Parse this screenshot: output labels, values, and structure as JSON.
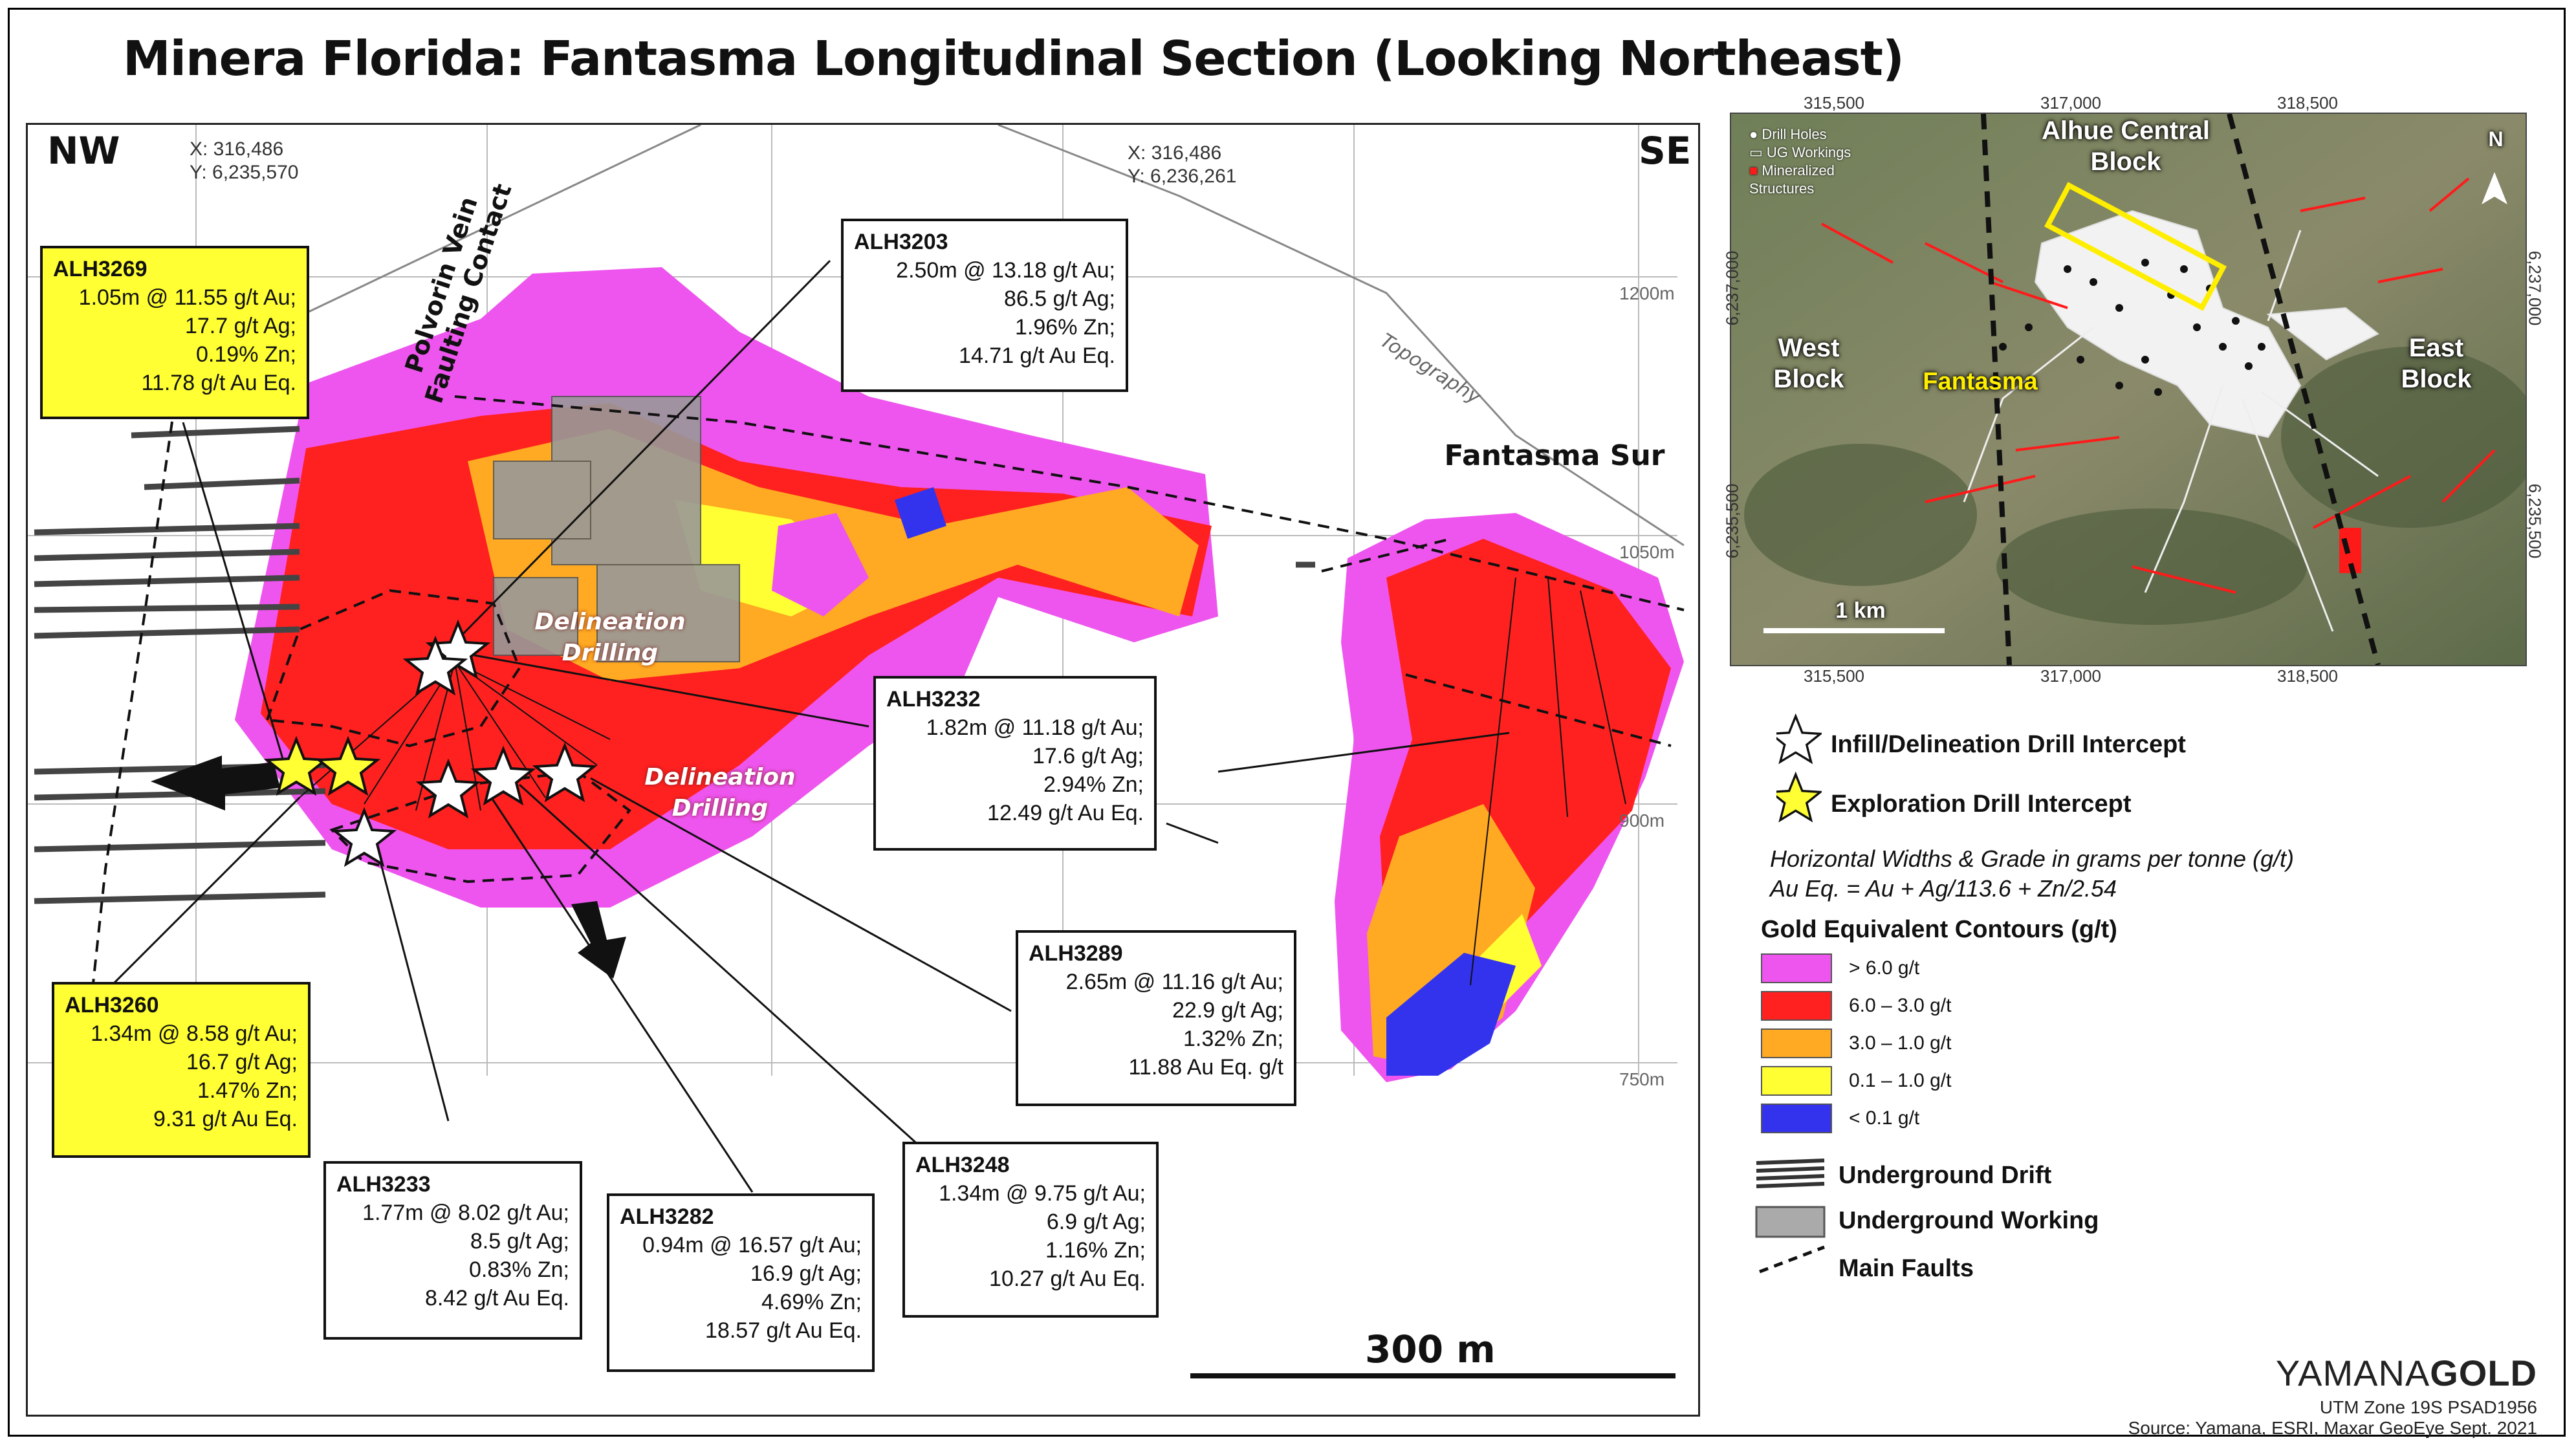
{
  "title": "Minera Florida: Fantasma Longitudinal Section (Looking Northeast)",
  "section": {
    "nw_label": "NW",
    "se_label": "SE",
    "coord_left": {
      "x": "X: 316,486",
      "y": "Y: 6,235,570"
    },
    "coord_right": {
      "x": "X: 316,486",
      "y": "Y: 6,236,261"
    },
    "elevations": [
      "1200m",
      "1050m",
      "900m",
      "750m"
    ],
    "fault_label": "Polvorin Vein Faulting Contact",
    "topography_label": "Topography",
    "delineation_1": "Delineation Drilling",
    "delineation_2": "Delineation Drilling",
    "fantasma_sur": "Fantasma Sur",
    "scale_label": "300 m"
  },
  "intercepts": [
    {
      "id": "ALH3269",
      "type": "exploration",
      "lines": [
        "1.05m @ 11.55 g/t Au;",
        "17.7 g/t Ag;",
        "0.19% Zn;",
        "11.78 g/t Au Eq."
      ]
    },
    {
      "id": "ALH3203",
      "type": "infill",
      "lines": [
        "2.50m @ 13.18 g/t Au;",
        "86.5 g/t Ag;",
        "1.96% Zn;",
        "14.71 g/t Au Eq."
      ]
    },
    {
      "id": "ALH3232",
      "type": "infill",
      "lines": [
        "1.82m @ 11.18 g/t Au;",
        "17.6 g/t Ag;",
        "2.94% Zn;",
        "12.49 g/t Au Eq."
      ]
    },
    {
      "id": "ALH3289",
      "type": "infill",
      "lines": [
        "2.65m @ 11.16 g/t Au;",
        "22.9 g/t Ag;",
        "1.32% Zn;",
        "11.88 Au Eq. g/t"
      ]
    },
    {
      "id": "ALH3260",
      "type": "exploration",
      "lines": [
        "1.34m @ 8.58 g/t Au;",
        "16.7 g/t Ag;",
        "1.47% Zn;",
        "9.31 g/t Au Eq."
      ]
    },
    {
      "id": "ALH3233",
      "type": "infill",
      "lines": [
        "1.77m @ 8.02 g/t Au;",
        "8.5 g/t Ag;",
        "0.83% Zn;",
        "8.42 g/t Au Eq."
      ]
    },
    {
      "id": "ALH3282",
      "type": "infill",
      "lines": [
        "0.94m @ 16.57 g/t Au;",
        "16.9 g/t Ag;",
        "4.69% Zn;",
        "18.57 g/t Au Eq."
      ]
    },
    {
      "id": "ALH3248",
      "type": "infill",
      "lines": [
        "1.34m @ 9.75 g/t Au;",
        "6.9 g/t Ag;",
        "1.16% Zn;",
        "10.27 g/t Au Eq."
      ]
    }
  ],
  "inset_map": {
    "x_ticks": [
      "315,500",
      "317,000",
      "318,500"
    ],
    "y_ticks_left": [
      "6,237,000",
      "6,235,500"
    ],
    "y_ticks_right": [
      "6,237,000",
      "6,235,500"
    ],
    "legend": [
      "Drill Holes",
      "UG Workings",
      "Mineralized Structures"
    ],
    "labels": {
      "alhue": "Alhue Central Block",
      "west": "West Block",
      "east": "East Block",
      "fantasma": "Fantasma",
      "north": "N",
      "scale": "1 km"
    }
  },
  "legend": {
    "infill": "Infill/Delineation Drill Intercept",
    "exploration": "Exploration Drill Intercept",
    "note_1": "Horizontal Widths & Grade in grams per tonne (g/t)",
    "note_2": "Au Eq. = Au + Ag/113.6 + Zn/2.54",
    "contours_title": "Gold Equivalent Contours (g/t)",
    "contours": [
      {
        "label": "> 6.0 g/t",
        "color": "#ee55ee"
      },
      {
        "label": "6.0 – 3.0 g/t",
        "color": "#ff2020"
      },
      {
        "label": "3.0 – 1.0 g/t",
        "color": "#ffaa22"
      },
      {
        "label": "0.1 – 1.0 g/t",
        "color": "#ffff33"
      },
      {
        "label": "< 0.1 g/t",
        "color": "#3333ee"
      }
    ],
    "drift": "Underground Drift",
    "working": "Underground Working",
    "faults": "Main Faults"
  },
  "branding": {
    "logo_a": "YAMANA",
    "logo_b": "GOLD",
    "credit_1": "UTM Zone 19S PSAD1956",
    "credit_2": "Source: Yamana, ESRI, Maxar GeoEye Sept. 2021"
  }
}
